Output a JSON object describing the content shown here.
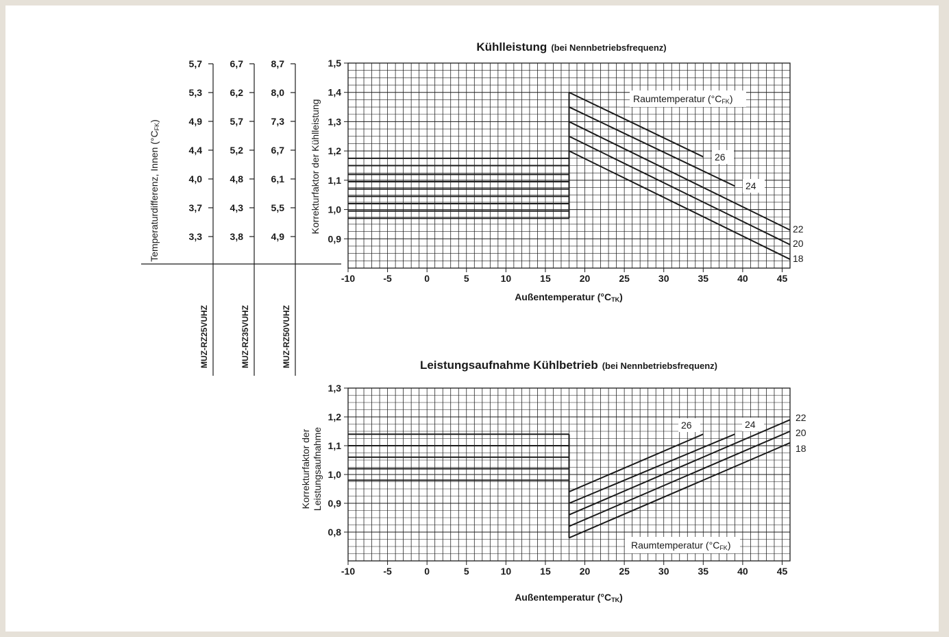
{
  "chart_data": [
    {
      "type": "line",
      "title": "Kühlleistung",
      "subtitle": "(bei Nennbetriebsfrequenz)",
      "xlabel": "Außentemperatur (°C",
      "xlabel_sub": "TK",
      "xlabel_end": ")",
      "ylabel": "Korrekturfaktor der Kühlleistung",
      "xlim": [
        -10,
        46
      ],
      "ylim": [
        0.8,
        1.5
      ],
      "x_ticks": [
        "-10",
        "-5",
        "0",
        "5",
        "10",
        "15",
        "20",
        "25",
        "30",
        "35",
        "40",
        "45"
      ],
      "y_ticks": [
        "1,5",
        "1,4",
        "1,3",
        "1,2",
        "1,1",
        "1,0",
        "0,9"
      ],
      "grid": true,
      "legend_title": "Raumtemperatur (°C",
      "legend_title_sub": "FK",
      "legend_title_end": ")",
      "series": [
        {
          "name": "26",
          "points": [
            [
              -10,
              1.175
            ],
            [
              18,
              1.175
            ],
            [
              18,
              1.4
            ],
            [
              35,
              1.18
            ]
          ]
        },
        {
          "name": "24",
          "points": [
            [
              -10,
              1.15
            ],
            [
              18,
              1.15
            ],
            [
              18,
              1.35
            ],
            [
              39,
              1.08
            ]
          ]
        },
        {
          "name": "22",
          "points": [
            [
              -10,
              1.12
            ],
            [
              18,
              1.12
            ],
            [
              18,
              1.3
            ],
            [
              46,
              0.93
            ]
          ]
        },
        {
          "name": "20",
          "points": [
            [
              -10,
              1.07
            ],
            [
              18,
              1.07
            ],
            [
              18,
              1.25
            ],
            [
              46,
              0.88
            ]
          ]
        },
        {
          "name": "18",
          "points": [
            [
              -10,
              1.02
            ],
            [
              18,
              1.02
            ],
            [
              18,
              1.2
            ],
            [
              46,
              0.83
            ]
          ]
        }
      ],
      "flat_lines": [
        1.175,
        1.15,
        1.12,
        1.095,
        1.07,
        1.045,
        1.02,
        0.995,
        0.97
      ]
    },
    {
      "type": "line",
      "title": "Leistungsaufnahme Kühlbetrieb",
      "subtitle": "(bei Nennbetriebsfrequenz)",
      "xlabel": "Außentemperatur (°C",
      "xlabel_sub": "TK",
      "xlabel_end": ")",
      "ylabel_line1": "Korrekturfaktor der",
      "ylabel_line2": "Leistungsaufnahme",
      "xlim": [
        -10,
        46
      ],
      "ylim": [
        0.7,
        1.3
      ],
      "x_ticks": [
        "-10",
        "-5",
        "0",
        "5",
        "10",
        "15",
        "20",
        "25",
        "30",
        "35",
        "40",
        "45"
      ],
      "y_ticks": [
        "1,3",
        "1,2",
        "1,1",
        "1,0",
        "0,9",
        "0,8"
      ],
      "grid": true,
      "legend_title": "Raumtemperatur (°C",
      "legend_title_sub": "FK",
      "legend_title_end": ")",
      "series": [
        {
          "name": "26",
          "points": [
            [
              -10,
              1.14
            ],
            [
              18,
              1.14
            ],
            [
              18,
              0.94
            ],
            [
              35,
              1.14
            ]
          ]
        },
        {
          "name": "24",
          "points": [
            [
              -10,
              1.1
            ],
            [
              18,
              1.1
            ],
            [
              18,
              0.9
            ],
            [
              39,
              1.14
            ]
          ]
        },
        {
          "name": "22",
          "points": [
            [
              -10,
              1.06
            ],
            [
              18,
              1.06
            ],
            [
              18,
              0.86
            ],
            [
              46,
              1.19
            ]
          ]
        },
        {
          "name": "20",
          "points": [
            [
              -10,
              1.02
            ],
            [
              18,
              1.02
            ],
            [
              18,
              0.82
            ],
            [
              46,
              1.15
            ]
          ]
        },
        {
          "name": "18",
          "points": [
            [
              -10,
              0.98
            ],
            [
              18,
              0.98
            ],
            [
              18,
              0.78
            ],
            [
              46,
              1.11
            ]
          ]
        }
      ],
      "flat_lines": [
        1.14,
        1.1,
        1.06,
        1.02,
        0.98
      ]
    }
  ],
  "temp_diff_scale": {
    "label": "Temperaturdifferenz, Innen (°C",
    "label_sub": "FK",
    "label_end": ")",
    "columns": [
      {
        "model": "MUZ-RZ25VUHZ",
        "values": [
          "5,7",
          "5,3",
          "4,9",
          "4,4",
          "4,0",
          "3,7",
          "3,3"
        ]
      },
      {
        "model": "MUZ-RZ35VUHZ",
        "values": [
          "6,7",
          "6,2",
          "5,7",
          "5,2",
          "4,8",
          "4,3",
          "3,8"
        ]
      },
      {
        "model": "MUZ-RZ50VUHZ",
        "values": [
          "8,7",
          "8,0",
          "7,3",
          "6,7",
          "6,1",
          "5,5",
          "4,9"
        ]
      }
    ]
  },
  "colors": {
    "background": "#e6e1d8",
    "panel": "#ffffff",
    "ink": "#1a1a1a"
  }
}
